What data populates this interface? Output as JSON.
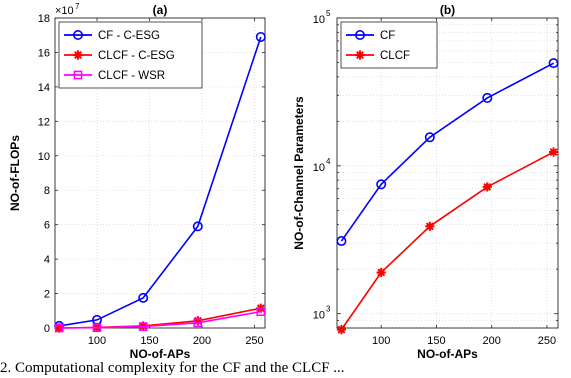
{
  "chart_data": [
    {
      "type": "line",
      "title": "(a)",
      "xlabel": "NO-of-APs",
      "ylabel": "NO-of-FLOPs",
      "yexponent_label": "×10",
      "yexponent_power": "7",
      "xlim": [
        60,
        260
      ],
      "ylim": [
        0,
        18
      ],
      "xticks": [
        100,
        150,
        200,
        250
      ],
      "yticks": [
        0,
        2,
        4,
        6,
        8,
        10,
        12,
        14,
        16,
        18
      ],
      "yscale": "linear",
      "grid": true,
      "legend_position": "top-left",
      "x": [
        64,
        100,
        144,
        196,
        256
      ],
      "series": [
        {
          "name": "CF - C-ESG",
          "color": "#0000ff",
          "marker": "circle",
          "values": [
            0.12,
            0.47,
            1.75,
            5.9,
            16.9
          ]
        },
        {
          "name": "CLCF - C-ESG",
          "color": "#ff0000",
          "marker": "star",
          "values": [
            0.0,
            0.03,
            0.12,
            0.42,
            1.15
          ]
        },
        {
          "name": "CLCF - WSR",
          "color": "#ff00ff",
          "marker": "square",
          "values": [
            0.0,
            0.02,
            0.08,
            0.3,
            0.95
          ]
        }
      ]
    },
    {
      "type": "line",
      "title": "(b)",
      "xlabel": "NO-of-APs",
      "ylabel": "NO-of-Channel Parameters",
      "xlim": [
        60,
        260
      ],
      "ylim": [
        800,
        100000
      ],
      "xticks": [
        100,
        150,
        200,
        250
      ],
      "yticks": [
        1000,
        10000,
        100000
      ],
      "ytick_labels": [
        {
          "base": "10",
          "exp": "3"
        },
        {
          "base": "10",
          "exp": "4"
        },
        {
          "base": "10",
          "exp": "5"
        }
      ],
      "yscale": "log",
      "grid": true,
      "legend_position": "top-left",
      "x": [
        64,
        100,
        144,
        196,
        256
      ],
      "series": [
        {
          "name": "CF",
          "color": "#0000ff",
          "marker": "circle",
          "values": [
            3100,
            7500,
            15600,
            28800,
            49500
          ]
        },
        {
          "name": "CLCF",
          "color": "#ff0000",
          "marker": "star",
          "values": [
            780,
            1900,
            3900,
            7200,
            12400
          ]
        }
      ]
    }
  ],
  "caption": "2.   Computational complexity for the CF and the CLCF ..."
}
